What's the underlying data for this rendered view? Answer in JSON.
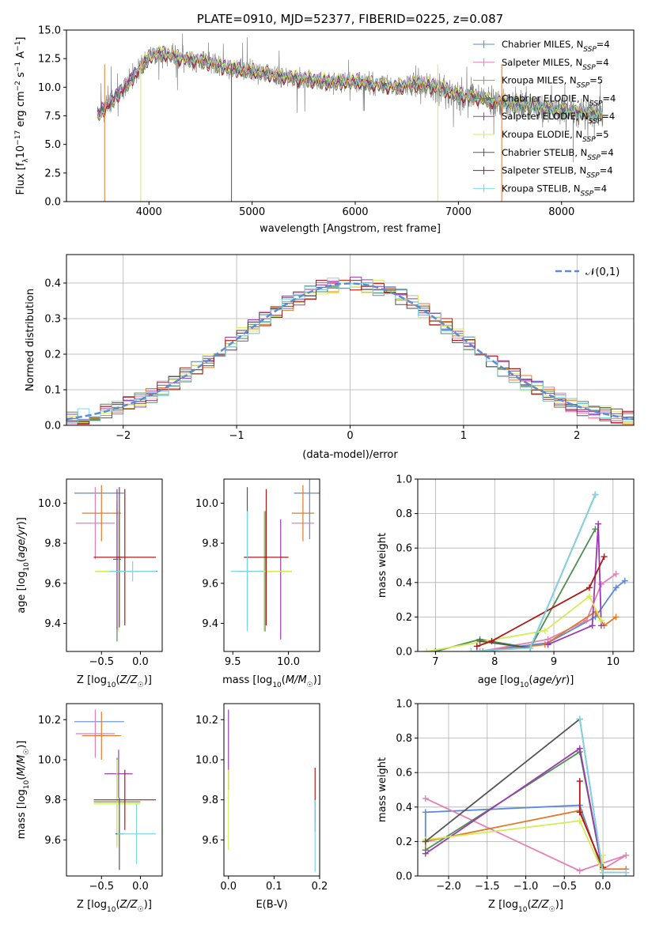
{
  "figure": {
    "colors": {
      "Chabrier MILES": "#5b8bd8",
      "Salpeter MILES": "#e67fb6",
      "Kroupa MILES": "#e07a2b",
      "Chabrier ELODIE": "#4f8f4f",
      "Salpeter ELODIE": "#9b3ab0",
      "Kroupa ELODIE": "#d4ec58",
      "Chabrier STELIB": "#555555",
      "Salpeter STELIB": "#b01818",
      "Kroupa STELIB": "#7fd6e3"
    }
  },
  "chart_data": [
    {
      "type": "line",
      "title": "PLATE=0910, MJD=52377, FIBERID=0225, z=0.087",
      "xlabel": "wavelength [Angstrom, rest frame]",
      "ylabel": "Flux [f_λ10^-17 erg cm^-2 s^-1 A^-1]",
      "xlim": [
        3200,
        8700
      ],
      "ylim": [
        0,
        15
      ],
      "xticks": [
        "4000",
        "5000",
        "6000",
        "7000",
        "8000"
      ],
      "yticks": [
        "0.0",
        "2.5",
        "5.0",
        "7.5",
        "10.0",
        "12.5",
        "15.0"
      ],
      "legend_position": "top-right",
      "legend": [
        "Chabrier MILES, N_SSP=4",
        "Salpeter MILES, N_SSP=4",
        "Kroupa MILES, N_SSP=5",
        "Chabrier ELODIE, N_SSP=4",
        "Salpeter ELODIE, N_SSP=4",
        "Kroupa ELODIE, N_SSP=5",
        "Chabrier STELIB, N_SSP=4",
        "Salpeter STELIB, N_SSP=4",
        "Kroupa STELIB, N_SSP=4"
      ],
      "continuum": {
        "x": [
          3500,
          3600,
          3700,
          3800,
          3900,
          4000,
          4100,
          4200,
          4300,
          4400,
          4500,
          4600,
          4800,
          5000,
          5200,
          5400,
          5600,
          5800,
          6000,
          6200,
          6400,
          6600,
          6800,
          7000,
          7200,
          7400,
          7600,
          7800,
          8000,
          8200,
          8400
        ],
        "y": [
          7.6,
          8.4,
          9.4,
          10.4,
          11.5,
          12.6,
          12.9,
          12.8,
          12.5,
          12.4,
          12.3,
          12.1,
          11.6,
          11.4,
          11.0,
          10.8,
          10.6,
          10.4,
          10.5,
          10.2,
          10.0,
          10.3,
          10.0,
          9.3,
          9.0,
          8.7,
          8.4,
          8.2,
          7.9,
          7.7,
          7.6
        ]
      }
    },
    {
      "type": "histogram",
      "xlabel": "(data-model)/error",
      "ylabel": "Normed distribution",
      "xlim": [
        -2.5,
        2.5
      ],
      "ylim": [
        0,
        0.48
      ],
      "xticks": [
        "−2",
        "−1",
        "0",
        "1",
        "2"
      ],
      "yticks": [
        "0.0",
        "0.1",
        "0.2",
        "0.3",
        "0.4"
      ],
      "legend": [
        "𝒩(0,1)"
      ],
      "legend_position": "top-right",
      "grid": true,
      "bin_width": 0.1
    },
    {
      "type": "scatter",
      "xlabel": "Z [log10(Z/Z☉)]",
      "ylabel": "age  [log10(age/yr)]",
      "xlim": [
        -0.95,
        0.28
      ],
      "ylim": [
        9.26,
        10.12
      ],
      "xticks": [
        "−0.5",
        "0.0"
      ],
      "yticks": [
        "9.4",
        "9.6",
        "9.8",
        "10.0"
      ],
      "points": [
        {
          "series": "Chabrier MILES",
          "x": -0.53,
          "y": 10.05,
          "xerr": 0.32,
          "yerr": 0.0
        },
        {
          "series": "Chabrier MILES",
          "x": 0.0,
          "y": 9.66,
          "xerr": 0.22,
          "yerr": 0.0
        },
        {
          "series": "Salpeter MILES",
          "x": -0.58,
          "y": 9.9,
          "xerr": 0.25,
          "yerr": 0.18
        },
        {
          "series": "Kroupa MILES",
          "x": -0.5,
          "y": 9.95,
          "xerr": 0.25,
          "yerr": 0.14
        },
        {
          "series": "Chabrier ELODIE",
          "x": -0.3,
          "y": 9.66,
          "xerr": 0.28,
          "yerr": 0.35
        },
        {
          "series": "Salpeter ELODIE",
          "x": -0.3,
          "y": 9.72,
          "xerr": 0.05,
          "yerr": 0.35
        },
        {
          "series": "Kroupa ELODIE",
          "x": -0.28,
          "y": 9.66,
          "xerr": 0.3,
          "yerr": 0.3
        },
        {
          "series": "Chabrier STELIB",
          "x": -0.27,
          "y": 9.73,
          "xerr": 0.04,
          "yerr": 0.35
        },
        {
          "series": "Salpeter STELIB",
          "x": -0.2,
          "y": 9.73,
          "xerr": 0.4,
          "yerr": 0.34
        },
        {
          "series": "Kroupa STELIB",
          "x": -0.1,
          "y": 9.66,
          "xerr": 0.3,
          "yerr": 0.05
        }
      ]
    },
    {
      "type": "scatter",
      "xlabel": "mass [log10(M/M☉)]",
      "xlim": [
        9.42,
        10.28
      ],
      "ylim": [
        9.26,
        10.12
      ],
      "xticks": [
        "9.5",
        "10.0"
      ],
      "yticks": [
        "9.4",
        "9.6",
        "9.8",
        "10.0"
      ],
      "points": [
        {
          "series": "Chabrier MILES",
          "x": 10.19,
          "y": 10.05,
          "xerr": 0.14,
          "yerr": 0.23
        },
        {
          "series": "Salpeter MILES",
          "x": 10.13,
          "y": 9.9,
          "xerr": 0.1,
          "yerr": 0.0
        },
        {
          "series": "Kroupa MILES",
          "x": 10.13,
          "y": 9.95,
          "xerr": 0.1,
          "yerr": 0.14
        },
        {
          "series": "Chabrier ELODIE",
          "x": 9.79,
          "y": 9.66,
          "xerr": 0.24,
          "yerr": 0.3
        },
        {
          "series": "Salpeter ELODIE",
          "x": 9.93,
          "y": 9.62,
          "xerr": 0.0,
          "yerr": 0.3
        },
        {
          "series": "Kroupa ELODIE",
          "x": 9.78,
          "y": 9.66,
          "xerr": 0.25,
          "yerr": 0.3
        },
        {
          "series": "Chabrier STELIB",
          "x": 9.63,
          "y": 9.73,
          "xerr": 0.0,
          "yerr": 0.35
        },
        {
          "series": "Salpeter STELIB",
          "x": 9.8,
          "y": 9.73,
          "xerr": 0.2,
          "yerr": 0.34
        },
        {
          "series": "Kroupa STELIB",
          "x": 9.63,
          "y": 9.66,
          "xerr": 0.15,
          "yerr": 0.3
        }
      ]
    },
    {
      "type": "line",
      "xlabel": "age  [log10(age/yr)]",
      "ylabel": "mass weight",
      "xlim": [
        6.7,
        10.35
      ],
      "ylim": [
        0,
        1
      ],
      "xticks": [
        "7",
        "8",
        "9",
        "10"
      ],
      "yticks": [
        "0.0",
        "0.2",
        "0.4",
        "0.6",
        "0.8",
        "1.0"
      ],
      "grid": true,
      "series": [
        {
          "name": "Chabrier MILES",
          "x": [
            7.7,
            8.9,
            9.7,
            10.05,
            10.2
          ],
          "y": [
            0.0,
            0.05,
            0.2,
            0.37,
            0.41
          ]
        },
        {
          "name": "Salpeter MILES",
          "x": [
            7.75,
            8.9,
            9.55,
            9.8,
            10.05
          ],
          "y": [
            0.0,
            0.07,
            0.18,
            0.39,
            0.45
          ]
        },
        {
          "name": "Kroupa MILES",
          "x": [
            7.8,
            8.85,
            9.7,
            9.85,
            10.05
          ],
          "y": [
            0.0,
            0.04,
            0.23,
            0.15,
            0.2
          ]
        },
        {
          "name": "Chabrier ELODIE",
          "x": [
            7.0,
            7.75,
            8.6,
            9.7
          ],
          "y": [
            0.0,
            0.07,
            0.02,
            0.71
          ]
        },
        {
          "name": "Salpeter ELODIE",
          "x": [
            8.9,
            9.65,
            9.75,
            9.8
          ],
          "y": [
            0.04,
            0.15,
            0.74,
            0.15
          ]
        },
        {
          "name": "Kroupa ELODIE",
          "x": [
            6.85,
            8.85,
            9.6,
            9.8
          ],
          "y": [
            0.0,
            0.12,
            0.32,
            0.18
          ]
        },
        {
          "name": "Chabrier STELIB",
          "x": [
            7.75,
            8.6,
            9.7
          ],
          "y": [
            0.06,
            0.02,
            0.91
          ]
        },
        {
          "name": "Salpeter STELIB",
          "x": [
            7.7,
            7.95,
            9.6,
            9.85
          ],
          "y": [
            0.03,
            0.06,
            0.37,
            0.55
          ]
        },
        {
          "name": "Kroupa STELIB",
          "x": [
            7.6,
            8.6,
            9.7
          ],
          "y": [
            0.0,
            0.02,
            0.91
          ]
        }
      ]
    },
    {
      "type": "scatter",
      "xlabel": "Z [log10(Z/Z☉)]",
      "ylabel": "mass [log10(M/M☉)]",
      "xlim": [
        -0.95,
        0.28
      ],
      "ylim": [
        9.42,
        10.28
      ],
      "xticks": [
        "−0.5",
        "0.0"
      ],
      "yticks": [
        "9.6",
        "9.8",
        "10.0",
        "10.2"
      ],
      "points": [
        {
          "series": "Chabrier MILES",
          "x": -0.53,
          "y": 10.19,
          "xerr": 0.32,
          "yerr": 0.0
        },
        {
          "series": "Salpeter MILES",
          "x": -0.58,
          "y": 10.13,
          "xerr": 0.25,
          "yerr": 0.12
        },
        {
          "series": "Kroupa MILES",
          "x": -0.5,
          "y": 10.12,
          "xerr": 0.25,
          "yerr": 0.12
        },
        {
          "series": "Chabrier ELODIE",
          "x": -0.3,
          "y": 9.79,
          "xerr": 0.3,
          "yerr": 0.22
        },
        {
          "series": "Salpeter ELODIE",
          "x": -0.28,
          "y": 9.93,
          "xerr": 0.18,
          "yerr": 0.12
        },
        {
          "series": "Kroupa ELODIE",
          "x": -0.3,
          "y": 9.78,
          "xerr": 0.3,
          "yerr": 0.22
        },
        {
          "series": "Chabrier STELIB",
          "x": -0.27,
          "y": 9.63,
          "xerr": 0.05,
          "yerr": 0.18
        },
        {
          "series": "Salpeter STELIB",
          "x": -0.2,
          "y": 9.8,
          "xerr": 0.4,
          "yerr": 0.15
        },
        {
          "series": "Kroupa STELIB",
          "x": -0.05,
          "y": 9.63,
          "xerr": 0.25,
          "yerr": 0.15
        }
      ]
    },
    {
      "type": "scatter",
      "xlabel": "E(B-V)",
      "xlim": [
        -0.01,
        0.2
      ],
      "ylim": [
        9.42,
        10.28
      ],
      "xticks": [
        "0.0",
        "0.1",
        "0.2"
      ],
      "yticks": [
        "9.6",
        "9.8",
        "10.0",
        "10.2"
      ],
      "points": [
        {
          "series": "Salpeter ELODIE",
          "x": 0.0,
          "y": 10.05,
          "xerr": 0.0,
          "yerr": 0.2
        },
        {
          "series": "Kroupa ELODIE",
          "x": 0.0,
          "y": 9.75,
          "xerr": 0.0,
          "yerr": 0.2
        },
        {
          "series": "Salpeter STELIB",
          "x": 0.19,
          "y": 9.8,
          "xerr": 0.0,
          "yerr": 0.16
        },
        {
          "series": "Kroupa STELIB",
          "x": 0.19,
          "y": 9.62,
          "xerr": 0.0,
          "yerr": 0.18
        }
      ]
    },
    {
      "type": "line",
      "xlabel": "Z [log10(Z/Z☉)]",
      "ylabel": "mass weight",
      "xlim": [
        -2.4,
        0.4
      ],
      "ylim": [
        0,
        1
      ],
      "xticks": [
        "−2.0",
        "−1.5",
        "−1.0",
        "−0.5",
        "0.0"
      ],
      "yticks": [
        "0.0",
        "0.2",
        "0.4",
        "0.6",
        "0.8",
        "1.0"
      ],
      "grid": true,
      "series": [
        {
          "name": "Chabrier MILES",
          "x": [
            -2.3,
            -2.3,
            -0.3,
            0.0,
            0.3
          ],
          "y": [
            0.2,
            0.37,
            0.41,
            0.02,
            0.02
          ]
        },
        {
          "name": "Salpeter MILES",
          "x": [
            -2.3,
            -0.3,
            0.3,
            0.0
          ],
          "y": [
            0.45,
            0.03,
            0.12,
            0.04
          ]
        },
        {
          "name": "Kroupa MILES",
          "x": [
            -2.3,
            -2.3,
            -0.3,
            0.0,
            0.3
          ],
          "y": [
            0.15,
            0.2,
            0.38,
            0.04,
            0.04
          ]
        },
        {
          "name": "Chabrier ELODIE",
          "x": [
            -2.3,
            -0.3,
            0.0
          ],
          "y": [
            0.15,
            0.72,
            0.02
          ]
        },
        {
          "name": "Salpeter ELODIE",
          "x": [
            -2.3,
            -0.3,
            0.0
          ],
          "y": [
            0.13,
            0.74,
            0.02
          ]
        },
        {
          "name": "Kroupa ELODIE",
          "x": [
            -2.3,
            -0.3,
            0.0,
            0.0
          ],
          "y": [
            0.21,
            0.32,
            0.02,
            0.12
          ]
        },
        {
          "name": "Chabrier STELIB",
          "x": [
            -2.3,
            -0.3,
            0.0
          ],
          "y": [
            0.2,
            0.91,
            0.02
          ]
        },
        {
          "name": "Salpeter STELIB",
          "x": [
            -0.3,
            -0.3,
            0.0
          ],
          "y": [
            0.55,
            0.37,
            0.05
          ]
        },
        {
          "name": "Kroupa STELIB",
          "x": [
            -0.3,
            0.0,
            0.3
          ],
          "y": [
            0.91,
            0.02,
            0.02
          ]
        }
      ]
    }
  ]
}
